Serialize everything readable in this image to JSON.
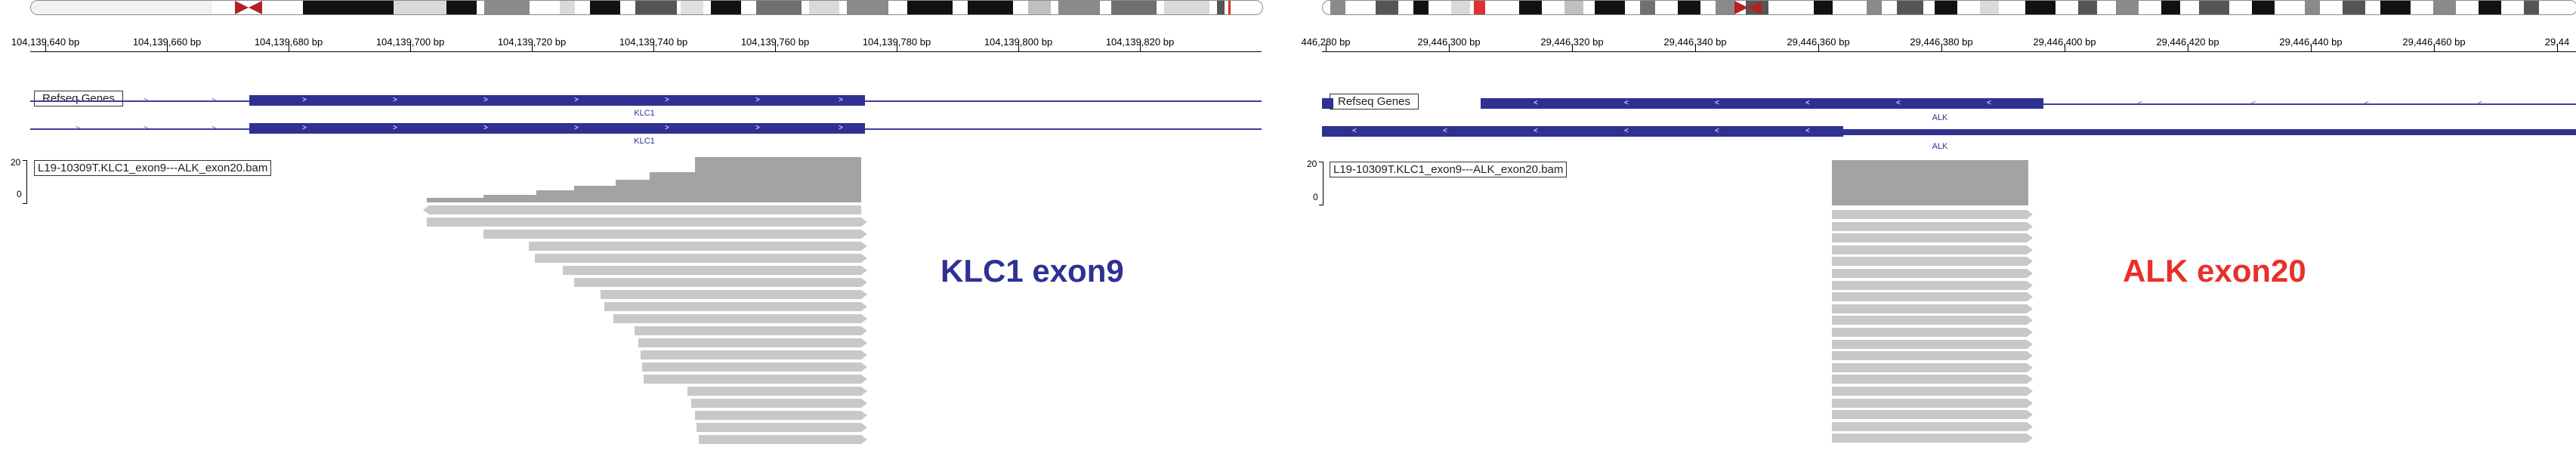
{
  "left": {
    "ruler_labels": [
      "104,139,640 bp",
      "104,139,660 bp",
      "104,139,680 bp",
      "104,139,700 bp",
      "104,139,720 bp",
      "104,139,740 bp",
      "104,139,760 bp",
      "104,139,780 bp",
      "104,139,800 bp",
      "104,139,820 bp"
    ],
    "refseq_label": "Refseq Genes",
    "gene_name": "KLC1",
    "gene_name_2": "KLC1",
    "coverage_max": "20",
    "coverage_min": "0",
    "bam_label": "L19-10309T.KLC1_exon9---ALK_exon20.bam",
    "annotation": "KLC1 exon9",
    "annotation_color": "#2e3192"
  },
  "right": {
    "ruler_labels": [
      "446,280 bp",
      "29,446,300 bp",
      "29,446,320 bp",
      "29,446,340 bp",
      "29,446,360 bp",
      "29,446,380 bp",
      "29,446,400 bp",
      "29,446,420 bp",
      "29,446,440 bp",
      "29,446,460 bp",
      "29,44"
    ],
    "refseq_label": "Refseq Genes",
    "gene_name": "ALK",
    "gene_name_2": "ALK",
    "coverage_max": "20",
    "coverage_min": "0",
    "bam_label": "L19-10309T.KLC1_exon9---ALK_exon20.bam",
    "annotation": "ALK exon20",
    "annotation_color": "#e8302a"
  },
  "colors": {
    "exon": "#2e3192",
    "read": "#c8c8c8",
    "coverage": "#a3a3a3",
    "centromere": "#b22222"
  }
}
